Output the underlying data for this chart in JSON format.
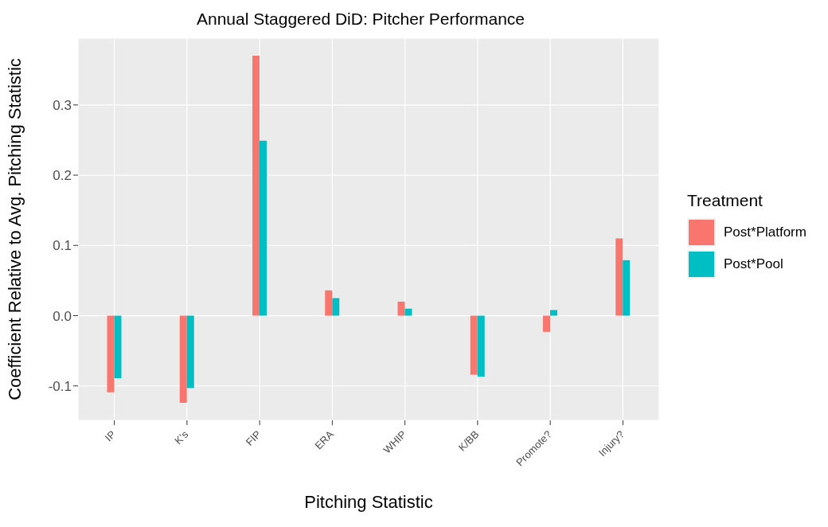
{
  "chart_data": {
    "type": "bar",
    "title": "Annual Staggered DiD: Pitcher Performance",
    "xlabel": "Pitching Statistic",
    "ylabel": "Coefficient Relative to Avg. Pitching Statistic",
    "legend_title": "Treatment",
    "legend": "right",
    "grid": true,
    "categories": [
      "IP",
      "K's",
      "FIP",
      "ERA",
      "WHIP",
      "K/BB",
      "Promote?",
      "Injury?"
    ],
    "series": [
      {
        "name": "Post*Platform",
        "color": "#f8766d",
        "values": [
          -0.109,
          -0.124,
          0.37,
          0.036,
          0.02,
          -0.084,
          -0.023,
          0.11
        ]
      },
      {
        "name": "Post*Pool",
        "color": "#00bfc4",
        "values": [
          -0.089,
          -0.103,
          0.249,
          0.025,
          0.01,
          -0.087,
          0.008,
          0.079
        ]
      }
    ],
    "ylim": [
      -0.149,
      0.395
    ],
    "yticks": [
      {
        "value": -0.1,
        "label": "-0.1"
      },
      {
        "value": 0,
        "label": "0.0"
      },
      {
        "value": 0.1,
        "label": "0.1"
      },
      {
        "value": 0.2,
        "label": "0.2"
      },
      {
        "value": 0.3,
        "label": "0.3"
      }
    ]
  }
}
